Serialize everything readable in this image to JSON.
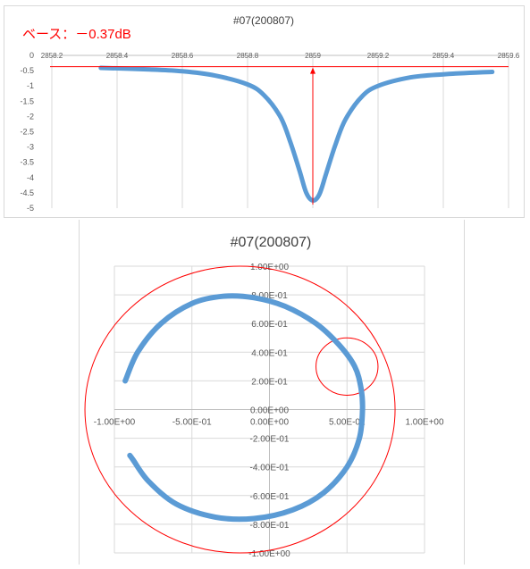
{
  "chart_data": [
    {
      "type": "line",
      "title": "#07(200807)",
      "annotation": "ベース：－0.37dB",
      "xlim": [
        2858.2,
        2859.6
      ],
      "ylim": [
        -5,
        0
      ],
      "x_ticks": [
        "2858.2",
        "2858.4",
        "2858.6",
        "2858.8",
        "2859",
        "2859.2",
        "2859.4",
        "2859.6"
      ],
      "y_ticks": [
        "0",
        "-0.5",
        "-1",
        "-1.5",
        "-2",
        "-2.5",
        "-3",
        "-3.5",
        "-4",
        "-4.5",
        "-5"
      ],
      "baseline": -0.37,
      "marker_x": 2859.0,
      "series": [
        {
          "color": "#5b9bd5",
          "x": [
            2858.35,
            2858.5,
            2858.6,
            2858.7,
            2858.8,
            2858.85,
            2858.9,
            2858.93,
            2858.96,
            2858.98,
            2859.0,
            2859.02,
            2859.04,
            2859.07,
            2859.1,
            2859.15,
            2859.2,
            2859.3,
            2859.4,
            2859.5,
            2859.55
          ],
          "y": [
            -0.41,
            -0.46,
            -0.52,
            -0.66,
            -0.95,
            -1.3,
            -2.0,
            -2.8,
            -3.8,
            -4.5,
            -4.75,
            -4.55,
            -3.9,
            -2.9,
            -2.1,
            -1.35,
            -1.0,
            -0.72,
            -0.62,
            -0.56,
            -0.54
          ]
        }
      ]
    },
    {
      "type": "scatter",
      "title": "#07(200807)",
      "xlim": [
        -1.0,
        1.0
      ],
      "ylim": [
        -1.0,
        1.0
      ],
      "x_ticks": [
        "-1.00E+00",
        "-5.00E-01",
        "0.00E+00",
        "5.00E-01",
        "1.00E+00"
      ],
      "y_ticks": [
        "1.00E+00",
        "8.00E-01",
        "6.00E-01",
        "4.00E-01",
        "2.00E-01",
        "0.00E+00",
        "-2.00E-01",
        "-4.00E-01",
        "-6.00E-01",
        "-8.00E-01",
        "-1.00E+00"
      ],
      "circles": [
        {
          "cx": -0.19,
          "cy": 0.0,
          "r": 1.0,
          "color": "#ff0000"
        },
        {
          "cx": 0.5,
          "cy": 0.3,
          "r": 0.2,
          "color": "#ff0000"
        }
      ],
      "series": [
        {
          "color": "#5b9bd5",
          "x": [
            -0.93,
            -0.85,
            -0.7,
            -0.5,
            -0.3,
            -0.1,
            0.1,
            0.3,
            0.45,
            0.55,
            0.59,
            0.6,
            0.58,
            0.5,
            0.35,
            0.15,
            -0.1,
            -0.35,
            -0.6,
            -0.78,
            -0.88,
            -0.9
          ],
          "y": [
            0.2,
            0.4,
            0.6,
            0.74,
            0.79,
            0.78,
            0.72,
            0.6,
            0.45,
            0.3,
            0.15,
            0.0,
            -0.2,
            -0.4,
            -0.58,
            -0.7,
            -0.76,
            -0.75,
            -0.66,
            -0.5,
            -0.35,
            -0.32
          ]
        }
      ]
    }
  ]
}
